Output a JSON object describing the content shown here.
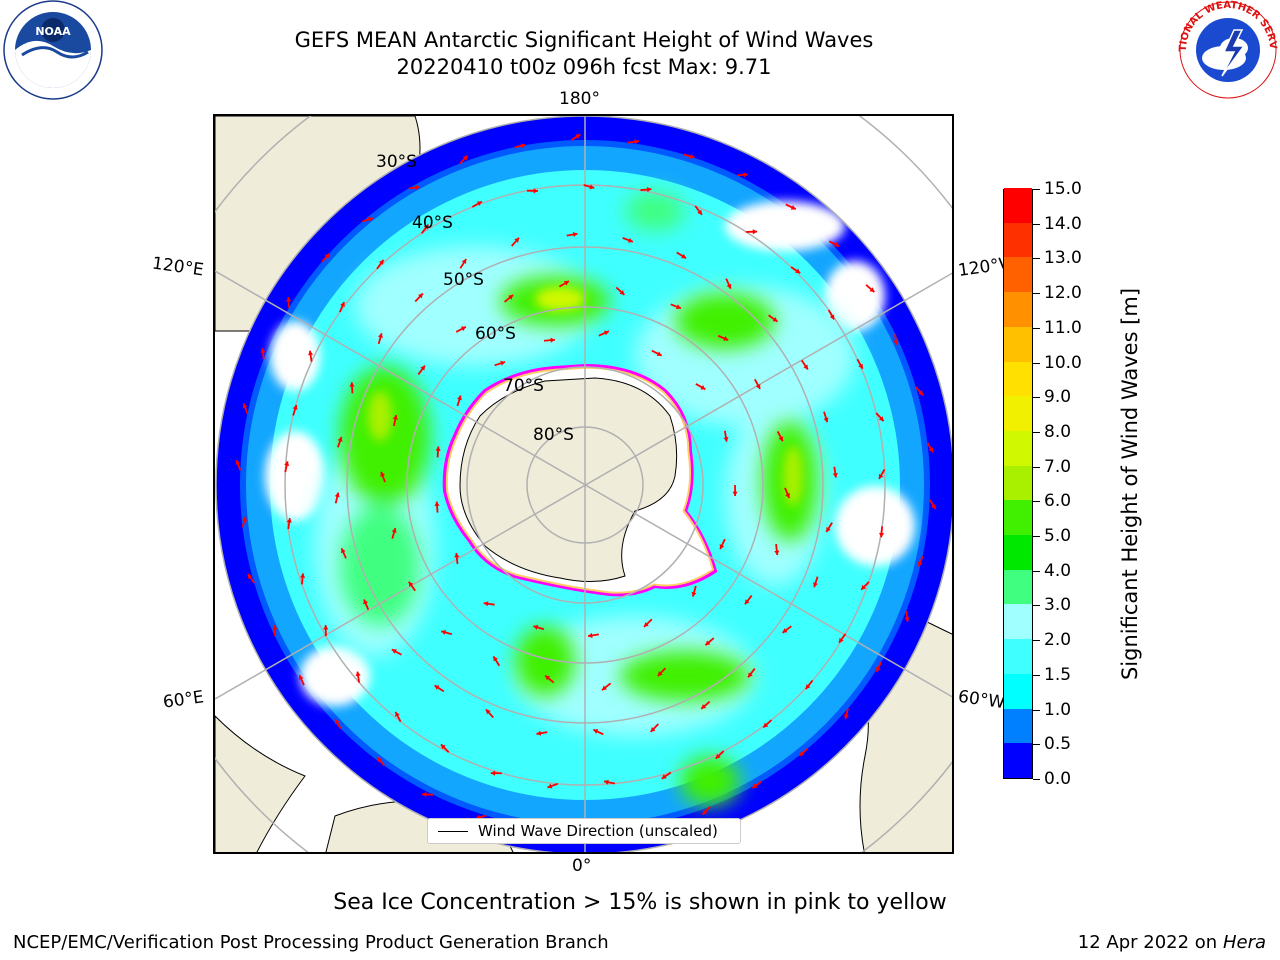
{
  "header": {
    "title_line1": "GEFS MEAN Antarctic Significant Height of Wind Waves",
    "title_line2": "20220410 t00z 096h fcst   Max: 9.71"
  },
  "logos": {
    "left": "NOAA",
    "right": "NATIONAL WEATHER SERVICE"
  },
  "map": {
    "projection": "south-polar-stereographic",
    "longitude_labels": {
      "top": "180°",
      "bottom": "0°",
      "upper_left": "120°E",
      "upper_right": "120°W",
      "lower_left": "60°E",
      "lower_right": "60°W"
    },
    "latitude_labels": [
      "30°S",
      "40°S",
      "50°S",
      "60°S",
      "70°S",
      "80°S"
    ],
    "legend_label": "Wind Wave Direction (unscaled)",
    "colors": {
      "land": "#efecda",
      "graticule": "#b0b0b0",
      "arrows": "#ff0000",
      "sea_ice_edge": [
        "#ff00ff",
        "#ffcc66"
      ]
    }
  },
  "colorbar": {
    "label": "Significant Height of Wind Waves [m]",
    "tick_labels": [
      "0.0",
      "0.5",
      "1.0",
      "1.5",
      "2.0",
      "3.0",
      "4.0",
      "5.0",
      "6.0",
      "7.0",
      "8.0",
      "9.0",
      "10.0",
      "11.0",
      "12.0",
      "13.0",
      "14.0",
      "15.0"
    ],
    "colors": [
      "#0000ff",
      "#0080ff",
      "#00ffff",
      "#40ffff",
      "#a0ffff",
      "#40ff80",
      "#00e800",
      "#40f000",
      "#a8f000",
      "#d0f800",
      "#f0f000",
      "#ffe000",
      "#ffc000",
      "#ff9000",
      "#ff6000",
      "#ff3000",
      "#ff0000"
    ]
  },
  "chart_data": {
    "type": "heatmap",
    "title": "GEFS MEAN Antarctic Significant Height of Wind Waves",
    "subtitle": "20220410 t00z 096h fcst   Max: 9.71",
    "colorbar_label": "Significant Height of Wind Waves [m]",
    "value_range": [
      0.0,
      15.0
    ],
    "max_value": 9.71,
    "levels": [
      0.0,
      0.5,
      1.0,
      1.5,
      2.0,
      3.0,
      4.0,
      5.0,
      6.0,
      7.0,
      8.0,
      9.0,
      10.0,
      11.0,
      12.0,
      13.0,
      14.0,
      15.0
    ]
  },
  "footer": {
    "note": "Sea Ice Concentration > 15% is shown in pink to yellow",
    "left": "NCEP/EMC/Verification Post Processing Product Generation Branch",
    "right_prefix": "12 Apr 2022 on ",
    "right_host": "Hera"
  }
}
